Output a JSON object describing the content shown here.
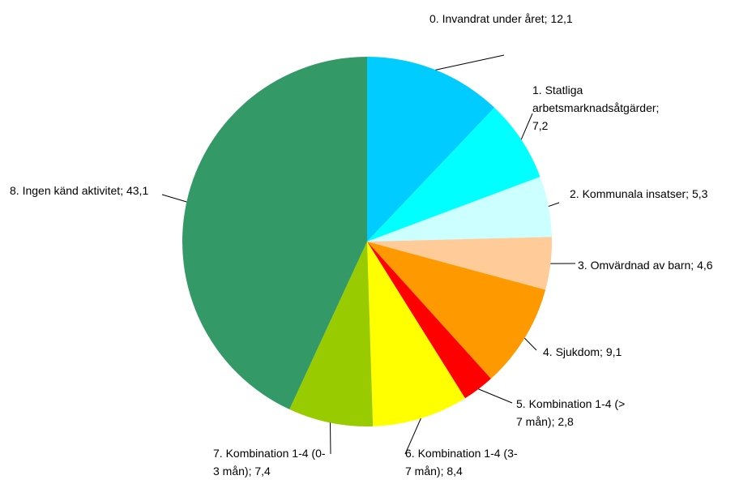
{
  "chart_data": {
    "type": "pie",
    "categories": [
      "0. Invandrat under året;",
      "1. Statliga arbetsmarknadsåtgärder;",
      "2. Kommunala insatser;",
      "3. Omvärdnad av barn;",
      "4. Sjukdom;",
      "5. Kombination 1-4 (> 7 mån);",
      "6. Kombination 1-4 (3-7 mån);",
      "7. Kombination 1-4 (0-3 mån);",
      "8. Ingen känd aktivitet;"
    ],
    "values": [
      12.1,
      7.2,
      5.3,
      4.6,
      9.1,
      2.8,
      8.4,
      7.4,
      43.1
    ],
    "value_labels": [
      "12,1",
      "7,2",
      "5,3",
      "4,6",
      "9,1",
      "2,8",
      "8,4",
      "7,4",
      "43,1"
    ],
    "colors": [
      "#00ccff",
      "#00ffff",
      "#ccffff",
      "#ffcc99",
      "#ff9900",
      "#ff0000",
      "#ffff00",
      "#99cc00",
      "#339966"
    ]
  }
}
